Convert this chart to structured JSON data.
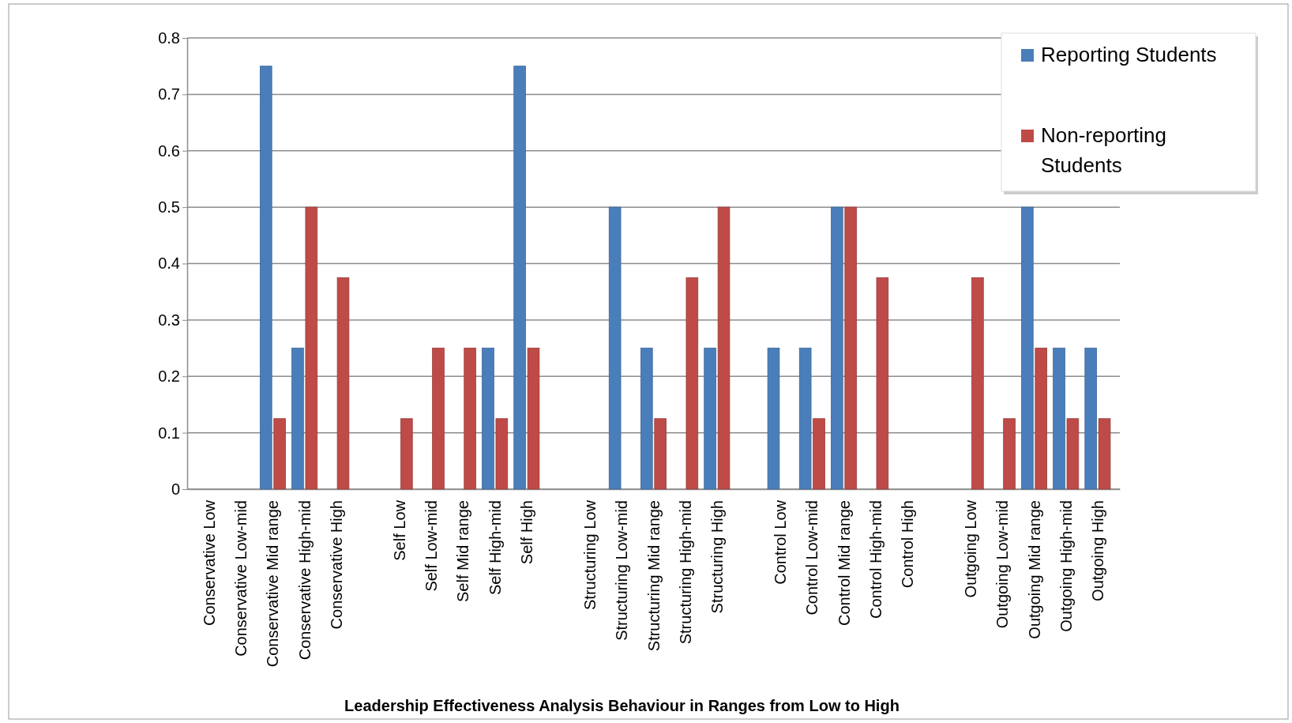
{
  "chart_data": {
    "type": "bar",
    "xlabel": "Leadership Effectiveness Analysis Behaviour in Ranges from Low to High",
    "categories": [
      "Conservative Low",
      "Conservative Low-mid",
      "Conservative Mid range",
      "Conservative High-mid",
      "Conservative High",
      null,
      "Self Low",
      "Self Low-mid",
      "Self Mid range",
      "Self High-mid",
      "Self High",
      null,
      "Structuring Low",
      "Structuring Low-mid",
      "Structuring Mid range",
      "Structuring High-mid",
      "Structuring High",
      null,
      "Control Low",
      "Control Low-mid",
      "Control Mid range",
      "Control High-mid",
      "Control High",
      null,
      "Outgoing Low",
      "Outgoing Low-mid",
      "Outgoing Mid range",
      "Outgoing High-mid",
      "Outgoing High"
    ],
    "series": [
      {
        "name": "Reporting Students",
        "color": "#4a7ebb",
        "values": [
          0,
          0,
          0.75,
          0.25,
          0,
          null,
          0,
          0,
          0,
          0.25,
          0.75,
          null,
          0,
          0.5,
          0.25,
          0,
          0.25,
          null,
          0.25,
          0.25,
          0.5,
          0,
          0,
          null,
          0,
          0,
          0.5,
          0.25,
          0.25
        ]
      },
      {
        "name": "Non-reporting Students",
        "color": "#be4b48",
        "values": [
          0,
          0,
          0.125,
          0.5,
          0.375,
          null,
          0.125,
          0.25,
          0.25,
          0.125,
          0.25,
          null,
          0,
          0,
          0.125,
          0.375,
          0.5,
          null,
          0,
          0.125,
          0.5,
          0.375,
          0,
          null,
          0.375,
          0.125,
          0.25,
          0.125,
          0.125
        ]
      }
    ],
    "ylim": [
      0,
      0.8
    ],
    "yticks": [
      0,
      0.1,
      0.2,
      0.3,
      0.4,
      0.5,
      0.6,
      0.7,
      0.8
    ],
    "grid": "y",
    "legend": "top right"
  }
}
